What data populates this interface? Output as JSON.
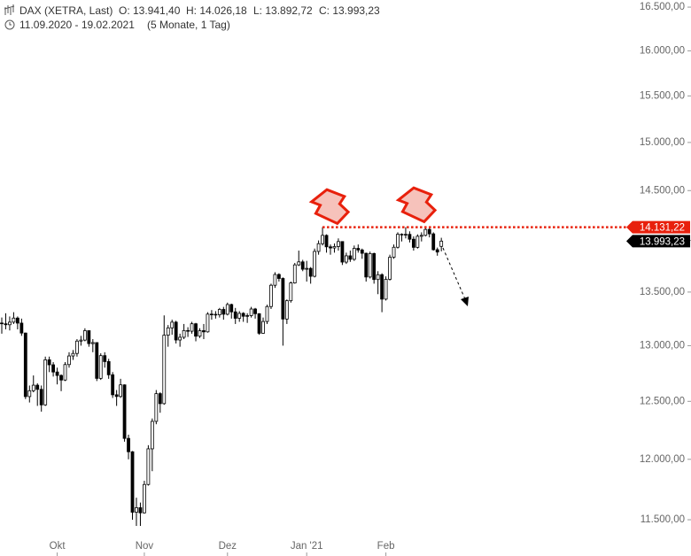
{
  "chart_data": {
    "type": "candlestick",
    "title": "DAX (XETRA, Last)",
    "ohlc_labels": [
      "O: 13.941,40",
      "H: 14.026,18",
      "L: 13.892,72",
      "C: 13.993,23"
    ],
    "subtitle": "11.09.2020 - 19.02.2021",
    "range_note": "(5 Monate, 1 Tag)",
    "log_scale": true,
    "up_color": "#ffffff",
    "down_color": "#000000",
    "level_color": "#e8200c",
    "ylim": [
      11372,
      16583
    ],
    "yticks": [
      {
        "value": 11500,
        "label": "11.500,00"
      },
      {
        "value": 12000,
        "label": "12.000,00"
      },
      {
        "value": 12500,
        "label": "12.500,00"
      },
      {
        "value": 13000,
        "label": "13.000,00"
      },
      {
        "value": 13500,
        "label": "13.500,00"
      },
      {
        "value": 14000,
        "label": "14.000,00"
      },
      {
        "value": 14500,
        "label": "14.500,00"
      },
      {
        "value": 15000,
        "label": "15.000,00"
      },
      {
        "value": 15500,
        "label": "15.500,00"
      },
      {
        "value": 16000,
        "label": "16.000,00"
      },
      {
        "value": 16500,
        "label": "16.500,00"
      }
    ],
    "resistance_level": {
      "value": 14131.22,
      "label": "14.131,22"
    },
    "last_price": {
      "value": 13993.23,
      "label": "13.993,23"
    },
    "categories": [
      null,
      null,
      null,
      null,
      null,
      null,
      null,
      null,
      null,
      null,
      null,
      null,
      null,
      null,
      "Okt",
      null,
      null,
      null,
      null,
      null,
      null,
      null,
      null,
      null,
      null,
      null,
      null,
      null,
      null,
      null,
      null,
      null,
      null,
      null,
      null,
      null,
      "Nov",
      null,
      null,
      null,
      null,
      null,
      null,
      null,
      null,
      null,
      null,
      null,
      null,
      null,
      null,
      null,
      null,
      null,
      null,
      null,
      null,
      "Dez",
      null,
      null,
      null,
      null,
      null,
      null,
      null,
      null,
      null,
      null,
      null,
      null,
      null,
      null,
      null,
      null,
      null,
      null,
      null,
      "Jan '21",
      null,
      null,
      null,
      null,
      null,
      null,
      null,
      null,
      null,
      null,
      null,
      null,
      null,
      null,
      null,
      null,
      null,
      null,
      null,
      "Feb",
      null,
      null,
      null,
      null,
      null,
      null,
      null,
      null,
      null,
      null,
      null,
      null,
      null,
      null
    ],
    "open": [
      13209,
      13202,
      13193,
      13217,
      13255,
      13208,
      13116,
      12542,
      12594,
      12643,
      12606,
      12469,
      12871,
      12826,
      12761,
      12730,
      12689,
      12828,
      12906,
      12929,
      13042,
      13051,
      13138,
      13019,
      13028,
      12704,
      12909,
      12855,
      12736,
      12558,
      12543,
      12646,
      12178,
      12064,
      11561,
      11598,
      11556,
      11789,
      12089,
      12325,
      12568,
      12480,
      13096,
      13164,
      13217,
      13052,
      13077,
      13139,
      13133,
      13202,
      13087,
      13138,
      13127,
      13292,
      13290,
      13286,
      13336,
      13291,
      13382,
      13313,
      13253,
      13299,
      13272,
      13278,
      13340,
      13296,
      13114,
      13223,
      13363,
      13565,
      13668,
      13630,
      13246,
      13418,
      13587,
      13761,
      13790,
      13719,
      13727,
      13651,
      13892,
      13968,
      14050,
      13937,
      13926,
      13940,
      13989,
      13788,
      13849,
      13815,
      13922,
      13906,
      13874,
      13644,
      13871,
      13620,
      13666,
      13433,
      13622,
      13835,
      13933,
      14061,
      14057,
      14060,
      14012,
      13932,
      14041,
      14050,
      14109,
      14065,
      13909,
      13941.4
    ],
    "high": [
      13260,
      13300,
      13270,
      13310,
      13270,
      13250,
      13120,
      12640,
      12730,
      12660,
      12640,
      12900,
      12900,
      12850,
      12800,
      12740,
      12850,
      12940,
      12960,
      13060,
      13090,
      13160,
      13140,
      13060,
      13030,
      12930,
      12940,
      12880,
      12760,
      12600,
      12700,
      12650,
      12210,
      12070,
      11680,
      11640,
      11820,
      12120,
      12350,
      12600,
      12580,
      13280,
      13190,
      13240,
      13230,
      13110,
      13200,
      13170,
      13220,
      13210,
      13160,
      13200,
      13310,
      13330,
      13320,
      13350,
      13360,
      13400,
      13390,
      13350,
      13320,
      13310,
      13300,
      13360,
      13350,
      13300,
      13260,
      13380,
      13580,
      13690,
      13680,
      13640,
      13430,
      13600,
      13780,
      13900,
      13810,
      13800,
      13740,
      13920,
      14000,
      14131,
      14060,
      13960,
      13970,
      14020,
      13990,
      13880,
      13900,
      13950,
      13960,
      13920,
      13880,
      13890,
      13880,
      13700,
      13680,
      13650,
      13860,
      13960,
      14080,
      14070,
      14131,
      14090,
      14040,
      14060,
      14080,
      14120,
      14131,
      14080,
      13930,
      14026.18
    ],
    "low": [
      13110,
      13150,
      13140,
      13200,
      13150,
      13090,
      12520,
      12490,
      12580,
      12460,
      12410,
      12460,
      12760,
      12720,
      12650,
      12590,
      12680,
      12800,
      12870,
      12900,
      13000,
      13040,
      12990,
      12940,
      12680,
      12690,
      12800,
      12700,
      12530,
      12460,
      12530,
      12150,
      12000,
      11500,
      11450,
      11450,
      11550,
      11780,
      11900,
      12300,
      12400,
      12470,
      12990,
      13100,
      13020,
      12990,
      13060,
      13080,
      13110,
      13040,
      13070,
      13060,
      13120,
      13240,
      13250,
      13260,
      13240,
      13280,
      13250,
      13200,
      13220,
      13220,
      13210,
      13260,
      13250,
      13100,
      13110,
      13200,
      13340,
      13540,
      13600,
      13000,
      13200,
      13400,
      13580,
      13750,
      13700,
      13600,
      13580,
      13640,
      13860,
      13950,
      13880,
      13860,
      13880,
      13900,
      13760,
      13770,
      13790,
      13800,
      13880,
      13820,
      13600,
      13630,
      13580,
      13480,
      13310,
      13420,
      13610,
      13820,
      13920,
      13990,
      14020,
      13980,
      13900,
      13920,
      13990,
      14040,
      14030,
      13900,
      13850,
      13892.72
    ],
    "close": [
      13202,
      13193,
      13217,
      13255,
      13208,
      13116,
      12542,
      12594,
      12643,
      12606,
      12469,
      12871,
      12826,
      12761,
      12730,
      12689,
      12828,
      12906,
      12929,
      13042,
      13051,
      13138,
      13019,
      13028,
      12704,
      12909,
      12855,
      12736,
      12558,
      12543,
      12646,
      12178,
      12064,
      11561,
      11598,
      11556,
      11789,
      12089,
      12325,
      12568,
      12480,
      13096,
      13164,
      13217,
      13052,
      13077,
      13139,
      13133,
      13202,
      13087,
      13138,
      13127,
      13292,
      13290,
      13286,
      13336,
      13291,
      13382,
      13313,
      13253,
      13299,
      13272,
      13278,
      13340,
      13296,
      13114,
      13223,
      13363,
      13565,
      13668,
      13630,
      13246,
      13418,
      13587,
      13761,
      13790,
      13719,
      13727,
      13651,
      13892,
      13968,
      14050,
      13937,
      13926,
      13940,
      13989,
      13788,
      13849,
      13815,
      13922,
      13906,
      13874,
      13644,
      13871,
      13620,
      13666,
      13433,
      13622,
      13835,
      13933,
      14061,
      14057,
      14060,
      14012,
      13932,
      14041,
      14050,
      14109,
      14065,
      13909,
      13886,
      13993.23
    ]
  }
}
